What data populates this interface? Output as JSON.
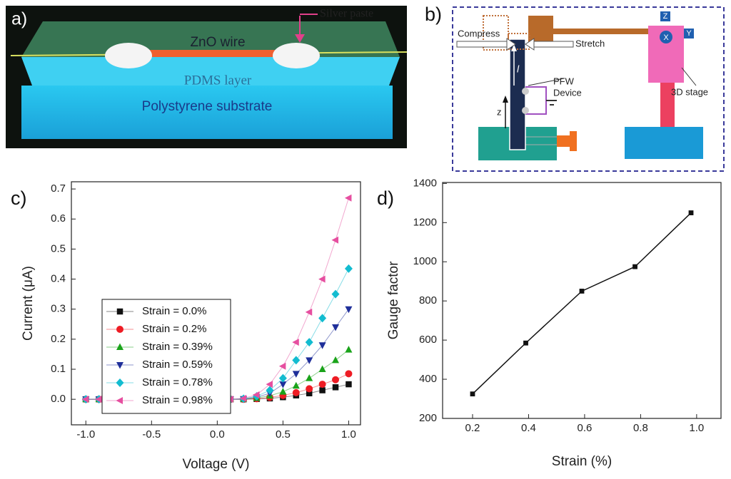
{
  "panels": {
    "a": {
      "label": "a)",
      "silver_paste": "Silver paste",
      "zno_wire": "ZnO wire",
      "pdms": "PDMS layer",
      "substrate": "Polystyrene substrate"
    },
    "b": {
      "label": "b)",
      "compress": "Compress",
      "stretch": "Stretch",
      "length": "l",
      "z": "z",
      "device": [
        "PFW",
        "Device"
      ],
      "stage": "3D stage",
      "axes": [
        "Z",
        "X",
        "Y"
      ]
    }
  },
  "chart_data": [
    {
      "type": "line",
      "panel_label": "c)",
      "x_label": "Voltage (V)",
      "y_label": "Current (μA)",
      "x": [
        -1.0,
        -0.9,
        -0.8,
        -0.7,
        -0.6,
        -0.5,
        -0.4,
        -0.3,
        -0.2,
        -0.1,
        0.0,
        0.1,
        0.2,
        0.3,
        0.4,
        0.5,
        0.6,
        0.7,
        0.8,
        0.9,
        1.0
      ],
      "series": [
        {
          "name": "Strain = 0.0%",
          "color": "#111111",
          "marker": "square",
          "values": [
            0,
            0,
            0,
            0,
            0,
            0,
            0,
            0,
            0,
            0,
            0,
            0,
            0,
            0.001,
            0.003,
            0.007,
            0.013,
            0.02,
            0.03,
            0.04,
            0.05
          ]
        },
        {
          "name": "Strain = 0.2%",
          "color": "#ee1c24",
          "marker": "circle",
          "values": [
            0,
            0,
            0,
            0,
            0,
            0,
            0,
            0,
            0,
            0,
            0,
            0,
            0,
            0.002,
            0.006,
            0.013,
            0.022,
            0.035,
            0.05,
            0.065,
            0.085
          ]
        },
        {
          "name": "Strain = 0.39%",
          "color": "#1aa31a",
          "marker": "triangle-up",
          "values": [
            0,
            0,
            0,
            0,
            0,
            0,
            0,
            0,
            0,
            0,
            0,
            0,
            0.001,
            0.004,
            0.012,
            0.025,
            0.045,
            0.07,
            0.1,
            0.13,
            0.165
          ]
        },
        {
          "name": "Strain = 0.59%",
          "color": "#1f2f9a",
          "marker": "triangle-down",
          "values": [
            0,
            0,
            0,
            0,
            0,
            0,
            0,
            0,
            0,
            0,
            0,
            0,
            0.001,
            0.007,
            0.02,
            0.05,
            0.085,
            0.13,
            0.18,
            0.24,
            0.3
          ]
        },
        {
          "name": "Strain = 0.78%",
          "color": "#12bcd0",
          "marker": "diamond",
          "values": [
            0,
            0,
            0,
            0,
            0,
            0,
            0,
            0,
            0,
            0,
            0,
            0,
            0.002,
            0.01,
            0.03,
            0.07,
            0.13,
            0.19,
            0.27,
            0.35,
            0.435
          ]
        },
        {
          "name": "Strain = 0.98%",
          "color": "#e64fa0",
          "marker": "triangle-left",
          "values": [
            0,
            0,
            0,
            0,
            0,
            0,
            0,
            0,
            0,
            0,
            0,
            0,
            0.003,
            0.015,
            0.05,
            0.11,
            0.19,
            0.29,
            0.4,
            0.53,
            0.67
          ]
        }
      ],
      "xlim": [
        -1.11,
        1.09
      ],
      "ylim": [
        -0.085,
        0.724
      ],
      "xticks": [
        {
          "value": -1,
          "label": "-1.0"
        },
        -0.5,
        {
          "value": 0,
          "label": "0.0"
        },
        0.5,
        {
          "value": 1,
          "label": "1.0"
        }
      ],
      "yticks": [
        {
          "value": 0,
          "label": "0.0"
        },
        0.1,
        0.2,
        0.3,
        0.4,
        0.5,
        0.6,
        0.7
      ],
      "legend": "lower left"
    },
    {
      "type": "line",
      "panel_label": "d)",
      "x_label": "Strain (%)",
      "y_label": "Gauge factor",
      "x": [
        0.2,
        0.39,
        0.59,
        0.78,
        0.98
      ],
      "series": [
        {
          "color": "#111111",
          "marker": "square",
          "values": [
            325,
            585,
            850,
            975,
            1250
          ]
        }
      ],
      "xlim": [
        0.093,
        1.087
      ],
      "ylim": [
        200,
        1405
      ],
      "xticks": [
        0.2,
        0.4,
        0.6,
        0.8,
        {
          "value": 1,
          "label": "1.0"
        }
      ],
      "yticks": [
        200,
        400,
        600,
        800,
        1000,
        1200,
        1400
      ]
    }
  ]
}
